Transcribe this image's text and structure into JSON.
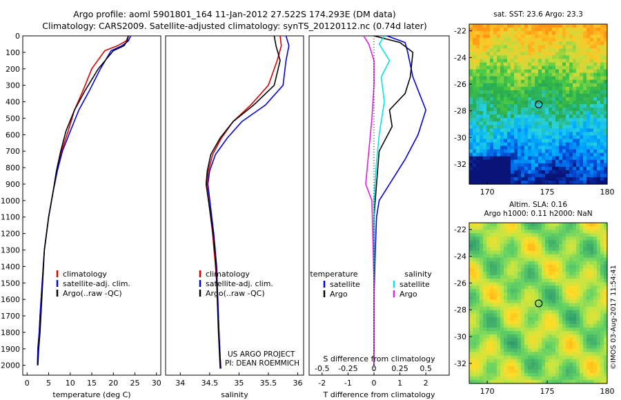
{
  "header": {
    "line1": "Argo profile: aoml 5901801_164 11-Jan-2012 27.522S 174.293E (DM data)",
    "line2": "Climatology: CARS2009. Satellite-adjusted climatology: synTS_20120112.nc (0.74d later)"
  },
  "credits": {
    "project": "US ARGO PROJECT",
    "pi": "PI: DEAN ROEMMICH",
    "stamp": "©IMOS 03-Aug-2017 11:54:41"
  },
  "colors": {
    "climatology": "#dd0000",
    "satellite": "#0000dd",
    "argo": "#000000",
    "s_satellite": "#00e5e5",
    "s_argo": "#e020e0"
  },
  "chart_data": [
    {
      "type": "line",
      "id": "temperature",
      "xlabel": "temperature (deg C)",
      "ylabel": "",
      "xlim": [
        -1,
        31
      ],
      "ylim": [
        0,
        2060
      ],
      "xticks": [
        0,
        5,
        10,
        15,
        20,
        25,
        30
      ],
      "yticks": [
        0,
        100,
        200,
        300,
        400,
        500,
        600,
        700,
        800,
        900,
        1000,
        1100,
        1200,
        1300,
        1400,
        1500,
        1600,
        1700,
        1800,
        1900,
        2000
      ],
      "legend": [
        "climatology",
        "satellite-adj. clim.",
        "Argo(..raw -QC)"
      ],
      "series": [
        {
          "name": "climatology",
          "x": [
            23.5,
            23,
            21,
            18,
            15,
            13,
            11,
            9.5,
            8,
            7,
            6,
            5,
            4,
            3.5,
            3,
            2.8,
            2.5,
            2.4
          ],
          "y": [
            0,
            30,
            60,
            90,
            200,
            330,
            450,
            580,
            700,
            820,
            950,
            1100,
            1300,
            1500,
            1700,
            1800,
            1900,
            2000
          ]
        },
        {
          "name": "satellite-adj. clim.",
          "x": [
            24,
            23.5,
            22,
            19.5,
            17,
            14.5,
            12,
            10,
            8.2,
            7,
            6,
            5,
            4,
            3.5,
            3,
            2.8,
            2.5,
            2.4
          ],
          "y": [
            0,
            30,
            60,
            90,
            200,
            330,
            450,
            580,
            700,
            820,
            950,
            1100,
            1300,
            1500,
            1700,
            1800,
            1900,
            2000
          ]
        },
        {
          "name": "Argo(..raw -QC)",
          "x": [
            23.5,
            23.2,
            22.5,
            20,
            16.5,
            13.5,
            11,
            9,
            7.8,
            6.8,
            6,
            5,
            4,
            3.6,
            3.2,
            3,
            2.7,
            2.5
          ],
          "y": [
            0,
            30,
            60,
            90,
            200,
            330,
            450,
            580,
            700,
            820,
            950,
            1100,
            1300,
            1500,
            1700,
            1800,
            1900,
            2000
          ]
        }
      ]
    },
    {
      "type": "line",
      "id": "salinity",
      "xlabel": "salinity",
      "ylabel": "",
      "xlim": [
        33.75,
        36.1
      ],
      "ylim": [
        0,
        2060
      ],
      "xticks": [
        34,
        34.5,
        35,
        35.5,
        36
      ],
      "legend": [
        "climatology",
        "satellite-adj. clim.",
        "Argo(..raw -QC)"
      ],
      "series": [
        {
          "name": "climatology",
          "x": [
            35.7,
            35.72,
            35.65,
            35.5,
            35.2,
            34.9,
            34.7,
            34.55,
            34.48,
            34.45,
            34.5,
            34.55,
            34.6,
            34.64,
            34.66,
            34.68,
            34.69
          ],
          "y": [
            0,
            60,
            150,
            300,
            420,
            520,
            620,
            720,
            820,
            900,
            1050,
            1200,
            1400,
            1600,
            1800,
            1950,
            2020
          ]
        },
        {
          "name": "satellite-adj. clim.",
          "x": [
            35.8,
            35.85,
            35.8,
            35.75,
            35.45,
            35.05,
            34.8,
            34.6,
            34.5,
            34.47,
            34.52,
            34.57,
            34.62,
            34.64,
            34.66,
            34.68,
            34.69
          ],
          "y": [
            0,
            60,
            150,
            300,
            420,
            520,
            620,
            720,
            820,
            900,
            1050,
            1200,
            1400,
            1600,
            1800,
            1950,
            2020
          ]
        },
        {
          "name": "Argo(..raw -QC)",
          "x": [
            35.6,
            35.63,
            35.7,
            35.6,
            35.25,
            34.9,
            34.68,
            34.52,
            34.46,
            34.44,
            34.5,
            34.56,
            34.61,
            34.63,
            34.65,
            34.67,
            34.68
          ],
          "y": [
            0,
            60,
            150,
            300,
            420,
            520,
            620,
            720,
            820,
            900,
            1050,
            1200,
            1400,
            1600,
            1800,
            1950,
            2020
          ]
        }
      ]
    },
    {
      "type": "line",
      "id": "difference",
      "xlabel": "T difference from climatology",
      "xlabel_top": "S difference from climatology",
      "xlim": [
        -2.5,
        2.9
      ],
      "ylim": [
        0,
        2060
      ],
      "xticks": [
        -2,
        -1,
        0,
        1,
        2
      ],
      "xticks_top": [
        -0.5,
        -0.25,
        0,
        0.25,
        0.5
      ],
      "xlim_top": [
        -0.625,
        0.725
      ],
      "legend_titles": {
        "t": "temperature",
        "s": "salinity"
      },
      "legend": {
        "t_satellite": "satellite",
        "t_argo": "Argo",
        "s_satellite": "satellite",
        "s_argo": "Argo"
      },
      "series": [
        {
          "name": "satellite",
          "quantity": "T",
          "x": [
            0.5,
            1.2,
            1.3,
            1.5,
            2.0,
            1.7,
            1.2,
            0.6,
            0.2,
            0.1,
            0.05,
            0.0,
            0.0
          ],
          "y": [
            0,
            40,
            100,
            250,
            450,
            600,
            750,
            900,
            1000,
            1100,
            1300,
            1600,
            2000
          ]
        },
        {
          "name": "Argo",
          "quantity": "T",
          "x": [
            0.0,
            1.0,
            1.5,
            1.4,
            1.2,
            0.6,
            0.7,
            0.2,
            0.1,
            0.0,
            0.0,
            0.0
          ],
          "y": [
            0,
            40,
            100,
            250,
            350,
            450,
            550,
            700,
            900,
            1100,
            1500,
            2000
          ]
        },
        {
          "name": "satellite",
          "quantity": "S",
          "x": [
            0.1,
            0.05,
            0.15,
            0.07,
            0.1,
            0.05,
            0.02,
            0.0,
            0.0,
            0.0
          ],
          "y": [
            0,
            50,
            150,
            250,
            400,
            600,
            800,
            1000,
            1500,
            2000
          ]
        },
        {
          "name": "Argo",
          "quantity": "S",
          "x": [
            -0.1,
            -0.05,
            0.0,
            0.0,
            -0.02,
            -0.05,
            -0.08,
            -0.02,
            0.0,
            0.0
          ],
          "y": [
            0,
            50,
            150,
            300,
            500,
            700,
            900,
            1000,
            1500,
            2000
          ]
        }
      ]
    },
    {
      "type": "heatmap",
      "id": "sst_map",
      "title": "sat. SST: 23.6 Argo: 23.3",
      "xlim": [
        168.5,
        180
      ],
      "ylim": [
        -33.5,
        -21.5
      ],
      "xticks": [
        170,
        175,
        180
      ],
      "yticks": [
        -22,
        -24,
        -26,
        -28,
        -30,
        -32
      ],
      "marker": {
        "lon": 174.293,
        "lat": -27.522
      }
    },
    {
      "type": "heatmap",
      "id": "sla_map",
      "title_line1": "Altim. SLA: 0.16",
      "title_line2": "Argo h1000: 0.11 h2000: NaN",
      "xlim": [
        168.5,
        180
      ],
      "ylim": [
        -33.5,
        -21.5
      ],
      "xticks": [
        170,
        175,
        180
      ],
      "yticks": [
        -22,
        -24,
        -26,
        -28,
        -30,
        -32
      ],
      "marker": {
        "lon": 174.293,
        "lat": -27.522
      }
    }
  ]
}
